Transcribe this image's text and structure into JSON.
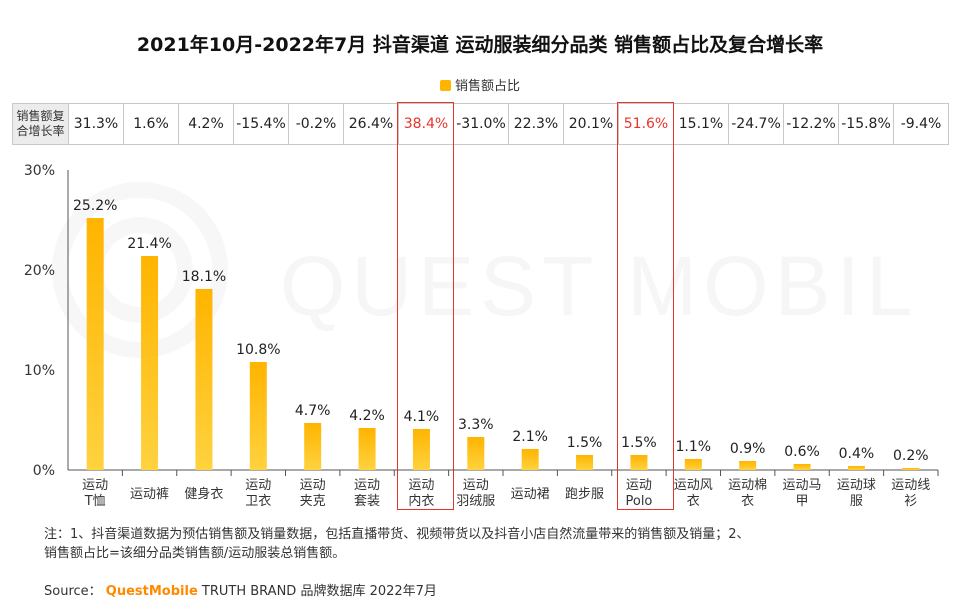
{
  "title": "2021年10月-2022年7月 抖音渠道  运动服装细分品类 销售额占比及复合增长率",
  "legend": {
    "label": "销售额占比",
    "color": "#FFB400"
  },
  "growth_row": {
    "header_line1": "销售额复",
    "header_line2": "合增长率",
    "values": [
      "31.3%",
      "1.6%",
      "4.2%",
      "-15.4%",
      "-0.2%",
      "26.4%",
      "38.4%",
      "-31.0%",
      "22.3%",
      "20.1%",
      "51.6%",
      "15.1%",
      "-24.7%",
      "-12.2%",
      "-15.8%",
      "-9.4%"
    ],
    "highlight_indices": [
      6,
      10
    ],
    "highlight_color": "#E8332A"
  },
  "watermark": "QUEST MOBILE",
  "chart_data": {
    "type": "bar",
    "series": [
      {
        "name": "销售额占比",
        "values": [
          25.2,
          21.4,
          18.1,
          10.8,
          4.7,
          4.2,
          4.1,
          3.3,
          2.1,
          1.5,
          1.5,
          1.1,
          0.9,
          0.6,
          0.4,
          0.2
        ]
      }
    ],
    "categories": [
      [
        "运动",
        "T恤"
      ],
      [
        "运动裤"
      ],
      [
        "健身衣"
      ],
      [
        "运动",
        "卫衣"
      ],
      [
        "运动",
        "夹克"
      ],
      [
        "运动",
        "套装"
      ],
      [
        "运动",
        "内衣"
      ],
      [
        "运动",
        "羽绒服"
      ],
      [
        "运动裙"
      ],
      [
        "跑步服"
      ],
      [
        "运动",
        "Polo"
      ],
      [
        "运动风",
        "衣"
      ],
      [
        "运动棉",
        "衣"
      ],
      [
        "运动马",
        "甲"
      ],
      [
        "运动球",
        "服"
      ],
      [
        "运动线",
        "衫"
      ]
    ],
    "data_labels": [
      "25.2%",
      "21.4%",
      "18.1%",
      "10.8%",
      "4.7%",
      "4.2%",
      "4.1%",
      "3.3%",
      "2.1%",
      "1.5%",
      "1.5%",
      "1.1%",
      "0.9%",
      "0.6%",
      "0.4%",
      "0.2%"
    ],
    "y_ticks": [
      {
        "value": 0,
        "label": "0%"
      },
      {
        "value": 10,
        "label": "10%"
      },
      {
        "value": 20,
        "label": "20%"
      },
      {
        "value": 30,
        "label": "30%"
      }
    ],
    "ylim": [
      0,
      30
    ],
    "bar_color": "#FFB400",
    "grid": false,
    "legend_position": "top-center"
  },
  "note": {
    "line1": "注：1、抖音渠道数据为预估销售额及销量数据，包括直播带货、视频带货以及抖音小店自然流量带来的销售额及销量；2、",
    "line2": "销售额占比=该细分品类销售额/运动服装总销售额。"
  },
  "source": {
    "prefix": "Source：",
    "brand": "QuestMobile",
    "suffix": "TRUTH BRAND 品牌数据库 2022年7月"
  }
}
